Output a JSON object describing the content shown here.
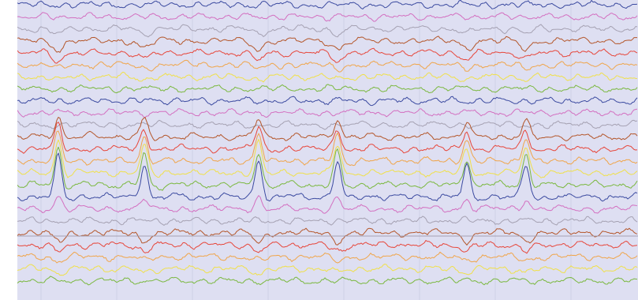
{
  "chart_data": {
    "type": "line",
    "title": "",
    "xlabel": "",
    "ylabel": "",
    "grid": true,
    "legend": "none",
    "spike_events": [
      {
        "spike": 1.0,
        "dip": 1.0
      },
      {
        "spike": 0.85,
        "dip": 0.9
      },
      {
        "spike": 0.95,
        "dip": 1.0
      },
      {
        "spike": 0.9,
        "dip": 0.95
      },
      {
        "spike": 0.75,
        "dip": 0.85
      },
      {
        "spike": 0.8,
        "dip": 0.9
      }
    ],
    "series": [
      {
        "color": "#3b4aa0",
        "values": [
          0,
          0,
          0,
          0,
          0,
          0
        ]
      },
      {
        "color": "#d36fc0",
        "values": [
          0,
          0,
          0,
          0,
          0,
          0
        ]
      },
      {
        "color": "#a5a1b2",
        "values": [
          -0.4,
          -0.4,
          -0.4,
          -0.4,
          -0.4,
          -0.4
        ]
      },
      {
        "color": "#b4562a",
        "values": [
          -0.6,
          -0.6,
          -0.6,
          -0.6,
          -0.6,
          -0.6
        ]
      },
      {
        "color": "#e7463a",
        "values": [
          -0.5,
          -0.5,
          -0.5,
          -0.5,
          -0.5,
          -0.5
        ]
      },
      {
        "color": "#f0a54a",
        "values": [
          -0.3,
          -0.3,
          -0.3,
          -0.3,
          -0.3,
          -0.3
        ]
      },
      {
        "color": "#f0e04a",
        "values": [
          -0.2,
          -0.2,
          -0.2,
          -0.2,
          -0.2,
          -0.2
        ]
      },
      {
        "color": "#7ab83e",
        "values": [
          0,
          0,
          0,
          0,
          0,
          0
        ]
      },
      {
        "color": "#3b4aa0",
        "values": [
          0,
          0,
          0,
          0,
          0,
          0
        ]
      },
      {
        "color": "#d36fc0",
        "values": [
          0,
          0,
          0,
          0,
          0,
          0
        ]
      },
      {
        "color": "#a5a1b2",
        "values": [
          0,
          0,
          0,
          0,
          0,
          0
        ]
      },
      {
        "color": "#b4562a",
        "values": [
          0.5,
          0.5,
          0.5,
          0.5,
          0.5,
          0.5
        ]
      },
      {
        "color": "#e7463a",
        "values": [
          0.6,
          0.6,
          0.6,
          0.6,
          0.6,
          0.6
        ]
      },
      {
        "color": "#f0a54a",
        "values": [
          0.7,
          0.7,
          0.7,
          0.7,
          0.7,
          0.7
        ]
      },
      {
        "color": "#f0e04a",
        "values": [
          0.8,
          0.8,
          0.8,
          0.8,
          0.8,
          0.8
        ]
      },
      {
        "color": "#7ab83e",
        "values": [
          0.9,
          0.9,
          0.9,
          0.9,
          0.9,
          0.9
        ]
      },
      {
        "color": "#3b4aa0",
        "values": [
          1.0,
          1.0,
          1.0,
          1.0,
          1.0,
          1.0
        ]
      },
      {
        "color": "#d36fc0",
        "values": [
          0.3,
          0.3,
          0.3,
          0.3,
          0.3,
          0.3
        ]
      },
      {
        "color": "#a5a1b2",
        "values": [
          0,
          0,
          0,
          0,
          0,
          0
        ]
      },
      {
        "color": "#b4562a",
        "values": [
          -0.6,
          -0.6,
          -0.6,
          -0.6,
          -0.6,
          -0.6
        ]
      },
      {
        "color": "#e7463a",
        "values": [
          -0.5,
          -0.5,
          -0.5,
          -0.5,
          -0.5,
          -0.5
        ]
      },
      {
        "color": "#f0a54a",
        "values": [
          -0.3,
          -0.3,
          -0.3,
          -0.3,
          -0.3,
          -0.3
        ]
      },
      {
        "color": "#f0e04a",
        "values": [
          -0.3,
          -0.3,
          -0.3,
          -0.3,
          -0.3,
          -0.3
        ]
      },
      {
        "color": "#7ab83e",
        "values": [
          0,
          0,
          0,
          0,
          0,
          0
        ]
      }
    ]
  }
}
